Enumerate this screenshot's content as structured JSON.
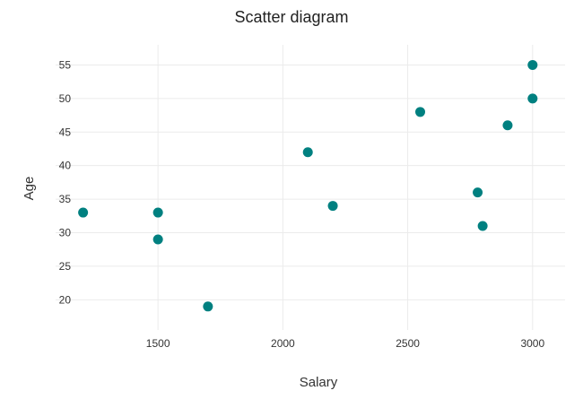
{
  "chart_data": {
    "type": "scatter",
    "title": "Scatter diagram",
    "xlabel": "Salary",
    "ylabel": "Age",
    "xlim": [
      1090,
      3130
    ],
    "ylim": [
      15.5,
      58
    ],
    "x_ticks": [
      1500,
      2000,
      2500,
      3000
    ],
    "y_ticks": [
      20,
      25,
      30,
      35,
      40,
      45,
      50,
      55
    ],
    "grid": true,
    "legend": "none",
    "series": [
      {
        "color": "#008080",
        "points": [
          {
            "x": 1200,
            "y": 33
          },
          {
            "x": 1500,
            "y": 33
          },
          {
            "x": 1500,
            "y": 29
          },
          {
            "x": 1700,
            "y": 19
          },
          {
            "x": 2100,
            "y": 42
          },
          {
            "x": 2200,
            "y": 34
          },
          {
            "x": 2550,
            "y": 48
          },
          {
            "x": 2780,
            "y": 36
          },
          {
            "x": 2800,
            "y": 31
          },
          {
            "x": 2900,
            "y": 46
          },
          {
            "x": 3000,
            "y": 55
          },
          {
            "x": 3000,
            "y": 50
          }
        ]
      }
    ],
    "colors": {
      "grid": "#ebebeb",
      "text": "#333333",
      "title": "#222222"
    }
  }
}
